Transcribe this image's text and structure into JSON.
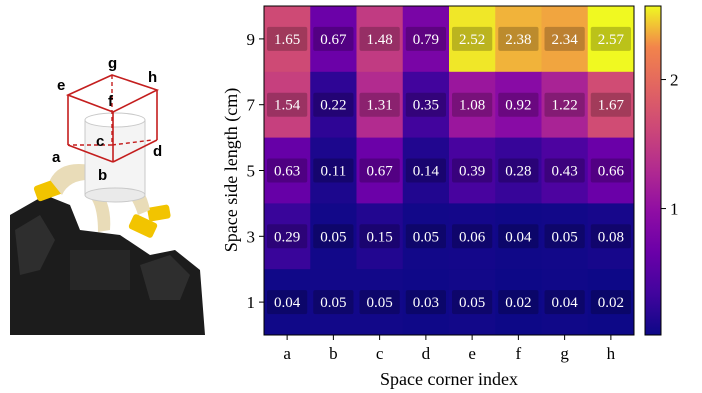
{
  "photo": {
    "corner_labels": [
      "a",
      "b",
      "c",
      "d",
      "e",
      "f",
      "g",
      "h"
    ]
  },
  "chart_data": {
    "type": "heatmap",
    "x_categories": [
      "a",
      "b",
      "c",
      "d",
      "e",
      "f",
      "g",
      "h"
    ],
    "y_categories": [
      "9",
      "7",
      "5",
      "3",
      "1"
    ],
    "xlabel": "Space corner index",
    "ylabel": "Space side length (cm)",
    "values": [
      [
        1.65,
        0.67,
        1.48,
        0.79,
        2.52,
        2.38,
        2.34,
        2.57
      ],
      [
        1.54,
        0.22,
        1.31,
        0.35,
        1.08,
        0.92,
        1.22,
        1.67
      ],
      [
        0.63,
        0.11,
        0.67,
        0.14,
        0.39,
        0.28,
        0.43,
        0.66
      ],
      [
        0.29,
        0.05,
        0.15,
        0.05,
        0.06,
        0.04,
        0.05,
        0.08
      ],
      [
        0.04,
        0.05,
        0.05,
        0.03,
        0.05,
        0.02,
        0.04,
        0.02
      ]
    ],
    "value_labels": [
      [
        "1.65",
        "0.67",
        "1.48",
        "0.79",
        "2.52",
        "2.38",
        "2.34",
        "2.57"
      ],
      [
        "1.54",
        "0.22",
        "1.31",
        "0.35",
        "1.08",
        "0.92",
        "1.22",
        "1.67"
      ],
      [
        "0.63",
        "0.11",
        "0.67",
        "0.14",
        "0.39",
        "0.28",
        "0.43",
        "0.66"
      ],
      [
        "0.29",
        "0.05",
        "0.15",
        "0.05",
        "0.06",
        "0.04",
        "0.05",
        "0.08"
      ],
      [
        "0.04",
        "0.05",
        "0.05",
        "0.03",
        "0.05",
        "0.02",
        "0.04",
        "0.02"
      ]
    ],
    "colorbar": {
      "colormap": "plasma",
      "range": [
        0.02,
        2.57
      ],
      "ticks": [
        1,
        2
      ],
      "tick_labels": [
        "1",
        "2"
      ]
    }
  }
}
